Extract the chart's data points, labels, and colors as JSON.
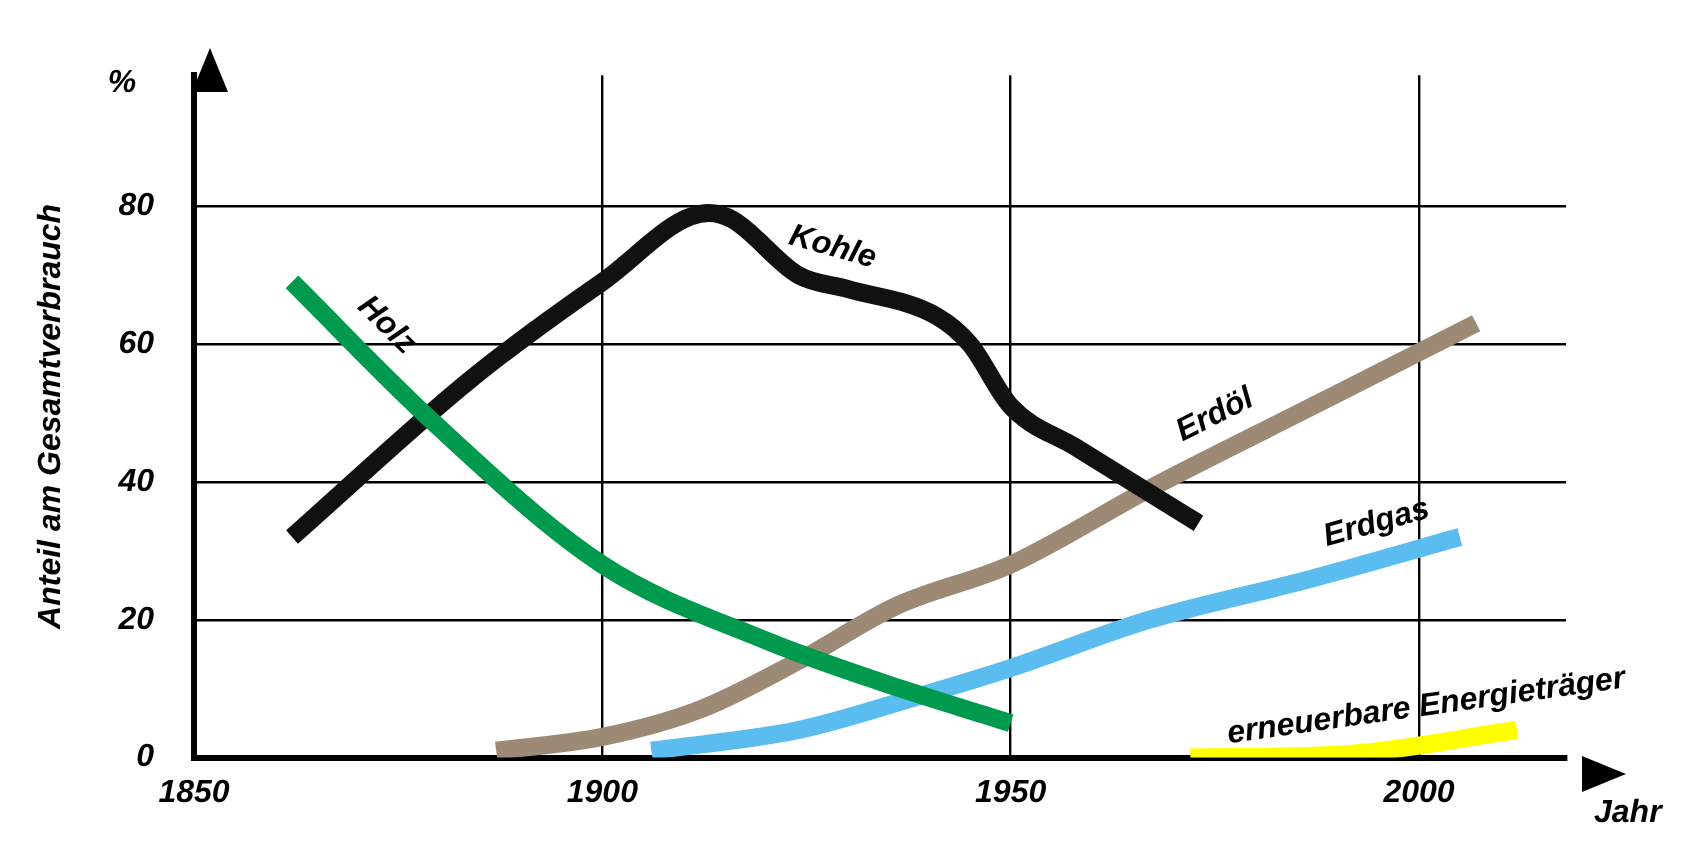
{
  "chart_data": {
    "type": "line",
    "xlabel": "Jahr",
    "ylabel": "Anteil am Gesamtverbrauch",
    "annotations": [
      "%"
    ],
    "xlim": [
      1850,
      2018
    ],
    "ylim": [
      0,
      99
    ],
    "xticks": [
      1850,
      1900,
      1950,
      2000
    ],
    "yticks": [
      0,
      20,
      40,
      60,
      80
    ],
    "grid": true,
    "legend": false,
    "marker": "none",
    "line_style": "solid",
    "series": [
      {
        "name": "Holz",
        "color": "#009a4e",
        "x": [
          1862,
          1879,
          1900,
          1920,
          1934,
          1950
        ],
        "values": [
          69,
          49,
          28,
          17,
          11,
          5
        ]
      },
      {
        "name": "Kohle",
        "color": "#111111",
        "x": [
          1862,
          1884,
          1900,
          1913,
          1916,
          1924,
          1930,
          1941,
          1945,
          1950,
          1958,
          1973
        ],
        "values": [
          32,
          55,
          69,
          79,
          78,
          70,
          68,
          64,
          60,
          51,
          45,
          34
        ]
      },
      {
        "name": "Erdöl",
        "color": "#9c8a74",
        "x": [
          1887,
          1900,
          1912,
          1924,
          1936,
          1950,
          1967,
          1987,
          2007
        ],
        "values": [
          1,
          3,
          7,
          14,
          22,
          28,
          39,
          51,
          63
        ]
      },
      {
        "name": "Erdgas",
        "color": "#5bbcf0",
        "x": [
          1906,
          1924,
          1939,
          1950,
          1967,
          1987,
          2005
        ],
        "values": [
          1,
          4,
          9,
          13,
          20,
          26,
          32
        ]
      },
      {
        "name": "erneuerbare Energieträger",
        "color": "#ffff00",
        "x": [
          1972,
          1991,
          2012
        ],
        "values": [
          0,
          0.5,
          4
        ]
      }
    ]
  }
}
